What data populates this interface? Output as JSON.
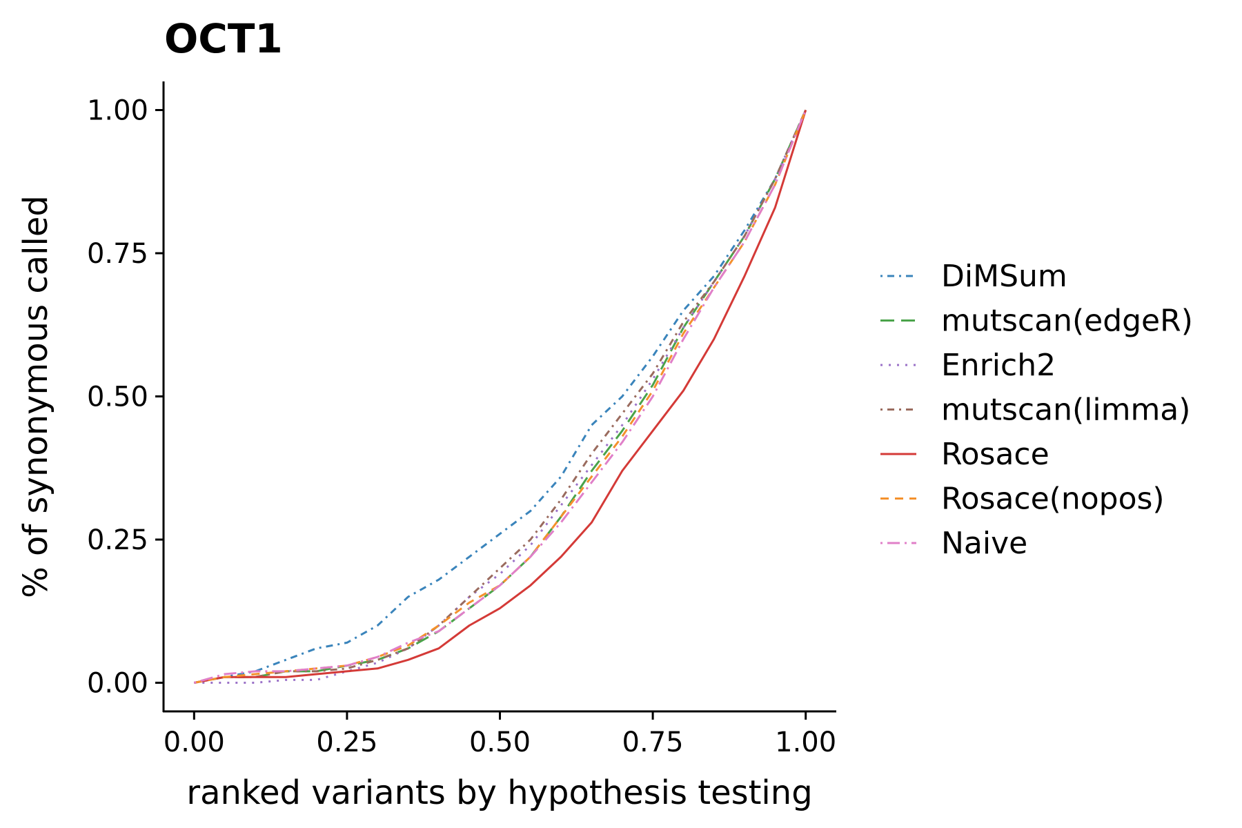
{
  "chart_data": {
    "type": "line",
    "title": "OCT1",
    "xlabel": "ranked variants by hypothesis testing",
    "ylabel": "% of synonymous called",
    "xlim": [
      -0.05,
      1.05
    ],
    "ylim": [
      -0.05,
      1.05
    ],
    "x_ticks": [
      0,
      0.25,
      0.5,
      0.75,
      1
    ],
    "x_tick_labels": [
      "0.00",
      "0.25",
      "0.50",
      "0.75",
      "1.00"
    ],
    "y_ticks": [
      0,
      0.25,
      0.5,
      0.75,
      1
    ],
    "y_tick_labels": [
      "0.00",
      "0.25",
      "0.50",
      "0.75",
      "1.00"
    ],
    "grid": false,
    "legend_position": "right",
    "series": [
      {
        "name": "DiMSum",
        "color": "#3a84bb",
        "dash": "dotdash",
        "x": [
          0,
          0.05,
          0.1,
          0.15,
          0.2,
          0.25,
          0.3,
          0.35,
          0.4,
          0.45,
          0.5,
          0.55,
          0.6,
          0.65,
          0.7,
          0.75,
          0.8,
          0.85,
          0.9,
          0.95,
          1.0
        ],
        "y": [
          0,
          0.01,
          0.02,
          0.04,
          0.06,
          0.07,
          0.1,
          0.15,
          0.18,
          0.22,
          0.26,
          0.3,
          0.36,
          0.45,
          0.5,
          0.57,
          0.65,
          0.71,
          0.79,
          0.88,
          1.0
        ]
      },
      {
        "name": "mutscan(edgeR)",
        "color": "#4aa34a",
        "dash": "longdash",
        "x": [
          0,
          0.05,
          0.1,
          0.15,
          0.2,
          0.25,
          0.3,
          0.35,
          0.4,
          0.45,
          0.5,
          0.55,
          0.6,
          0.65,
          0.7,
          0.75,
          0.8,
          0.85,
          0.9,
          0.95,
          1.0
        ],
        "y": [
          0,
          0.01,
          0.01,
          0.02,
          0.02,
          0.03,
          0.04,
          0.06,
          0.09,
          0.13,
          0.17,
          0.22,
          0.29,
          0.37,
          0.44,
          0.52,
          0.62,
          0.7,
          0.78,
          0.88,
          1.0
        ]
      },
      {
        "name": "Enrich2",
        "color": "#9b72c8",
        "dash": "dotted",
        "x": [
          0,
          0.05,
          0.1,
          0.15,
          0.2,
          0.25,
          0.3,
          0.35,
          0.4,
          0.45,
          0.5,
          0.55,
          0.6,
          0.65,
          0.7,
          0.75,
          0.8,
          0.85,
          0.9,
          0.95,
          1.0
        ],
        "y": [
          0,
          0.0,
          0.0,
          0.005,
          0.005,
          0.02,
          0.035,
          0.06,
          0.1,
          0.15,
          0.19,
          0.24,
          0.31,
          0.38,
          0.45,
          0.53,
          0.62,
          0.7,
          0.78,
          0.88,
          1.0
        ]
      },
      {
        "name": "mutscan(limma)",
        "color": "#9a6b5e",
        "dash": "dotdash",
        "x": [
          0,
          0.05,
          0.1,
          0.15,
          0.2,
          0.25,
          0.3,
          0.35,
          0.4,
          0.45,
          0.5,
          0.55,
          0.6,
          0.65,
          0.7,
          0.75,
          0.8,
          0.85,
          0.9,
          0.95,
          1.0
        ],
        "y": [
          0,
          0.01,
          0.01,
          0.02,
          0.02,
          0.025,
          0.04,
          0.06,
          0.1,
          0.15,
          0.2,
          0.25,
          0.32,
          0.4,
          0.47,
          0.54,
          0.63,
          0.7,
          0.78,
          0.88,
          1.0
        ]
      },
      {
        "name": "Rosace",
        "color": "#d43a37",
        "dash": "solid",
        "x": [
          0,
          0.05,
          0.1,
          0.15,
          0.2,
          0.25,
          0.3,
          0.35,
          0.4,
          0.45,
          0.5,
          0.55,
          0.6,
          0.65,
          0.7,
          0.75,
          0.8,
          0.85,
          0.9,
          0.95,
          1.0
        ],
        "y": [
          0,
          0.01,
          0.01,
          0.01,
          0.015,
          0.02,
          0.025,
          0.04,
          0.06,
          0.1,
          0.13,
          0.17,
          0.22,
          0.28,
          0.37,
          0.44,
          0.51,
          0.6,
          0.71,
          0.83,
          1.0
        ]
      },
      {
        "name": "Rosace(nopos)",
        "color": "#f4912c",
        "dash": "dashed",
        "x": [
          0,
          0.05,
          0.1,
          0.15,
          0.2,
          0.25,
          0.3,
          0.35,
          0.4,
          0.45,
          0.5,
          0.55,
          0.6,
          0.65,
          0.7,
          0.75,
          0.8,
          0.85,
          0.9,
          0.95,
          1.0
        ],
        "y": [
          0,
          0.01,
          0.015,
          0.02,
          0.025,
          0.03,
          0.045,
          0.065,
          0.1,
          0.14,
          0.17,
          0.22,
          0.29,
          0.36,
          0.43,
          0.51,
          0.61,
          0.69,
          0.77,
          0.87,
          1.0
        ]
      },
      {
        "name": "Naive",
        "color": "#e07fc8",
        "dash": "dotlongdash",
        "x": [
          0,
          0.05,
          0.1,
          0.15,
          0.2,
          0.25,
          0.3,
          0.35,
          0.4,
          0.45,
          0.5,
          0.55,
          0.6,
          0.65,
          0.7,
          0.75,
          0.8,
          0.85,
          0.9,
          0.95,
          1.0
        ],
        "y": [
          0,
          0.015,
          0.02,
          0.02,
          0.025,
          0.03,
          0.045,
          0.07,
          0.09,
          0.13,
          0.17,
          0.22,
          0.28,
          0.35,
          0.42,
          0.5,
          0.6,
          0.69,
          0.77,
          0.87,
          1.0
        ]
      }
    ]
  }
}
